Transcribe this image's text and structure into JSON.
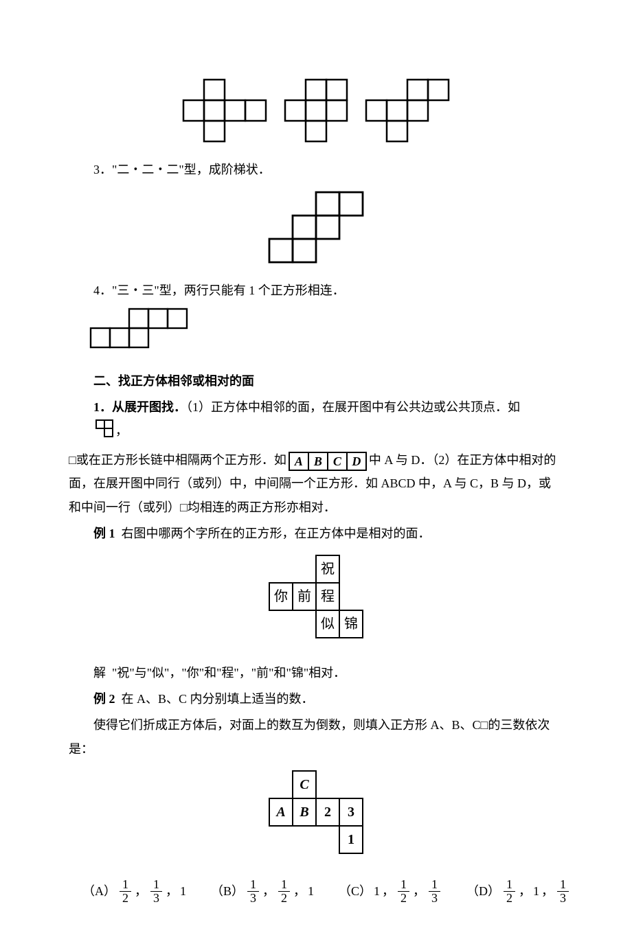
{
  "figs_top": {
    "cell": 30,
    "stroke": "#000000",
    "stroke_width": 2.5,
    "shapes": [
      {
        "cells": [
          [
            0,
            1
          ],
          [
            1,
            0
          ],
          [
            1,
            1
          ],
          [
            1,
            2
          ],
          [
            1,
            3
          ],
          [
            2,
            1
          ]
        ]
      },
      {
        "cells": [
          [
            0,
            1
          ],
          [
            0,
            2
          ],
          [
            1,
            0
          ],
          [
            1,
            1
          ],
          [
            1,
            2
          ],
          [
            2,
            1
          ]
        ]
      },
      {
        "cells": [
          [
            0,
            2
          ],
          [
            0,
            3
          ],
          [
            1,
            0
          ],
          [
            1,
            1
          ],
          [
            1,
            2
          ],
          [
            2,
            1
          ]
        ]
      }
    ]
  },
  "line3": "3．\"二・二・二\"型，成阶梯状．",
  "fig_stair": {
    "cell": 34,
    "stroke": "#000000",
    "stroke_width": 2.8,
    "cells": [
      [
        0,
        2
      ],
      [
        0,
        3
      ],
      [
        1,
        1
      ],
      [
        1,
        2
      ],
      [
        2,
        0
      ],
      [
        2,
        1
      ]
    ]
  },
  "line4": "4．\"三・三\"型，两行只能有 1 个正方形相连．",
  "fig_33": {
    "cell": 28,
    "stroke": "#000000",
    "stroke_width": 2.4,
    "cells": [
      [
        0,
        2
      ],
      [
        0,
        3
      ],
      [
        0,
        4
      ],
      [
        1,
        0
      ],
      [
        1,
        1
      ],
      [
        1,
        2
      ]
    ]
  },
  "heading2": "二、找正方体相邻或相对的面",
  "para_expand_1a": "1．从展开图找．",
  "para_expand_1b": "（1）正方体中相邻的面，在展开图中有公共边或公共顶点．如",
  "inline_L": {
    "cell": 12,
    "stroke": "#000000",
    "stroke_width": 2,
    "cells": [
      [
        0,
        0
      ],
      [
        0,
        1
      ],
      [
        1,
        1
      ]
    ]
  },
  "para_expand_1c": "，",
  "para_expand_2a": "□或在正方形长链中相隔两个正方形．如",
  "abcd": [
    "A",
    "B",
    "C",
    "D"
  ],
  "para_expand_2b": "中 A 与 D．（2）在正方体中相对的面，在展开图中同行（或列）中，中间隔一个正方形．如 ABCD 中，A 与 C，B 与 D，或和中间一行（或列）□均相连的两正方形亦相对．",
  "ex1_label": "例 1",
  "ex1_text": "右图中哪两个字所在的正方形，在正方体中是相对的面．",
  "fig_ex1": {
    "rows": [
      [
        null,
        null,
        "祝",
        null
      ],
      [
        "你",
        "前",
        "程",
        null
      ],
      [
        null,
        null,
        "似",
        "锦"
      ]
    ]
  },
  "solution1_label": "解",
  "solution1_text": "\"祝\"与\"似\"，\"你\"和\"程\"，\"前\"和\"锦\"相对．",
  "ex2_label": "例 2",
  "ex2_text": "在 A、B、C 内分别填上适当的数．",
  "ex2_body": "使得它们折成正方体后，对面上的数互为倒数，则填入正方形 A、B、C□的三数依次是：",
  "fig_ex2": {
    "rows": [
      [
        null,
        {
          "t": "C",
          "it": true
        },
        null,
        null
      ],
      [
        {
          "t": "A",
          "it": true
        },
        {
          "t": "B",
          "it": true
        },
        {
          "t": "2",
          "it": false
        },
        {
          "t": "3",
          "it": false
        }
      ],
      [
        null,
        null,
        null,
        {
          "t": "1",
          "it": false
        }
      ]
    ]
  },
  "options": [
    {
      "label": "（A）",
      "parts": [
        {
          "f": [
            1,
            2
          ]
        },
        "，",
        {
          "f": [
            1,
            3
          ]
        },
        "，",
        "1"
      ]
    },
    {
      "label": "（B）",
      "parts": [
        {
          "f": [
            1,
            3
          ]
        },
        "，",
        {
          "f": [
            1,
            2
          ]
        },
        "，",
        "1"
      ]
    },
    {
      "label": "（C）",
      "parts": [
        "1",
        "，",
        {
          "f": [
            1,
            2
          ]
        },
        "，",
        {
          "f": [
            1,
            3
          ]
        }
      ]
    },
    {
      "label": "（D）",
      "parts": [
        {
          "f": [
            1,
            2
          ]
        },
        "，",
        "1",
        "，",
        {
          "f": [
            1,
            3
          ]
        }
      ]
    }
  ]
}
